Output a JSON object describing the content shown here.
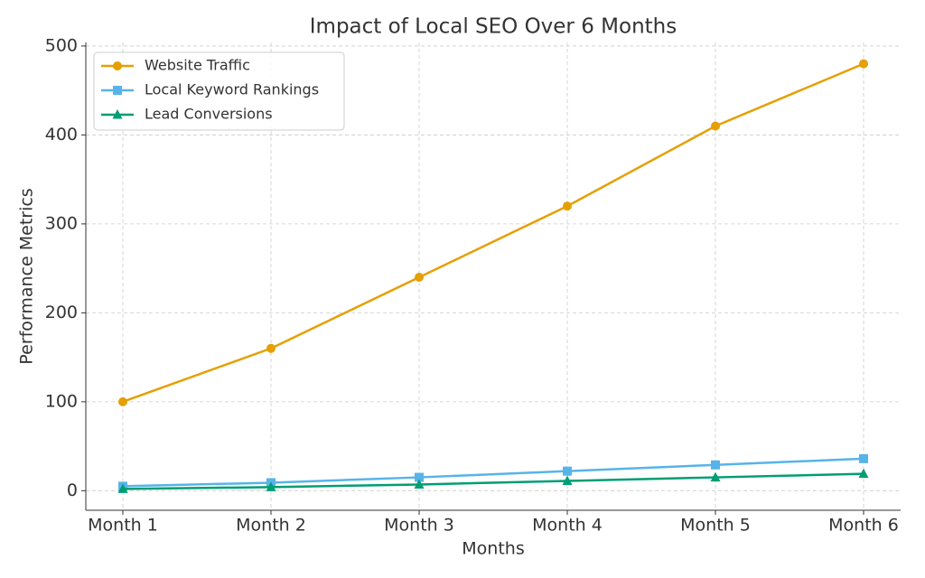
{
  "chart_data": {
    "type": "line",
    "title": "Impact of Local SEO Over 6 Months",
    "x_label": "Months",
    "y_label": "Performance Metrics",
    "categories": [
      "Month 1",
      "Month 2",
      "Month 3",
      "Month 4",
      "Month 5",
      "Month 6"
    ],
    "series": [
      {
        "name": "Website Traffic",
        "color": "#E69F00",
        "marker": "circle",
        "values": [
          100,
          160,
          240,
          320,
          410,
          480
        ]
      },
      {
        "name": "Local Keyword Rankings",
        "color": "#56B4E9",
        "marker": "square",
        "values": [
          5,
          9,
          15,
          22,
          29,
          36
        ]
      },
      {
        "name": "Lead Conversions",
        "color": "#009E73",
        "marker": "triangle",
        "values": [
          2,
          4,
          7,
          11,
          15,
          19
        ]
      }
    ],
    "ylim": [
      -22,
      504
    ],
    "yticks": [
      0,
      100,
      200,
      300,
      400,
      500
    ],
    "grid": true,
    "legend": "upper left"
  }
}
